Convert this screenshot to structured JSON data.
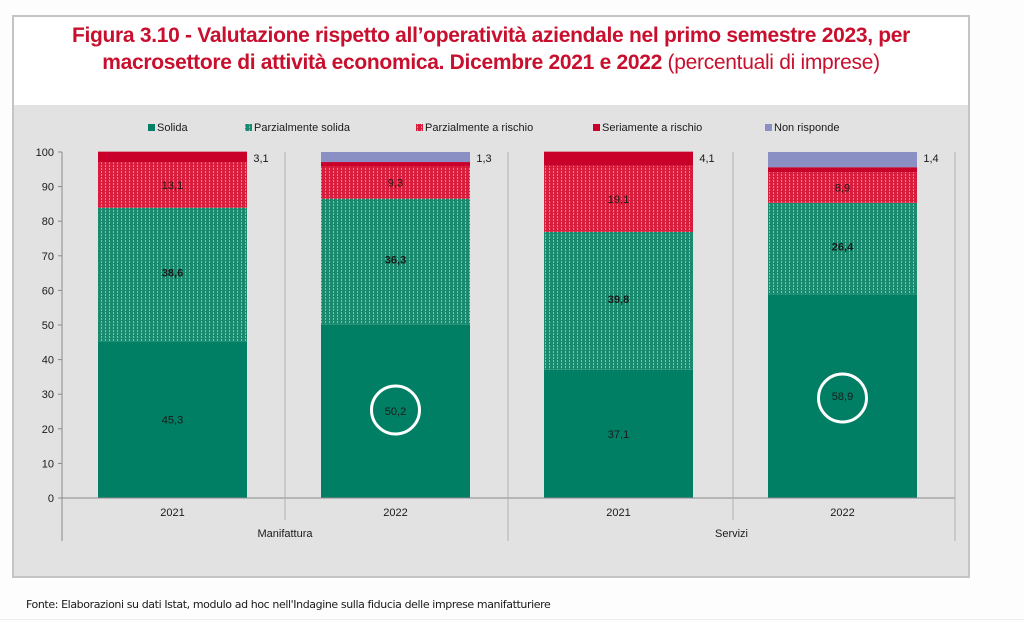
{
  "title": {
    "bold": "Figura 3.10 - Valutazione rispetto all’operatività aziendale nel primo semestre 2023, per macrosettore di attività economica. Dicembre 2021 e 2022",
    "normal": " (percentuali di imprese)"
  },
  "source": "Fonte: Elaborazioni su dati Istat, modulo ad hoc nell'Indagine sulla fiducia delle imprese manifatturiere",
  "colors": {
    "solida": "#007f64",
    "parzialmente_solida": "#1a8a6e",
    "parzialmente_a_rischio": "#d81e3c",
    "seriamente_a_rischio": "#c8002a",
    "non_risponde": "#8a8fc4"
  },
  "chart_data": {
    "type": "bar",
    "stacked": true,
    "title": "Valutazione rispetto all’operatività aziendale nel primo semestre 2023, per macrosettore di attività economica. Dicembre 2021 e 2022 (percentuali di imprese)",
    "xlabel": "",
    "ylabel": "",
    "ylim": [
      0,
      100
    ],
    "yticks": [
      "0",
      "10",
      "20",
      "30",
      "40",
      "50",
      "60",
      "70",
      "80",
      "90",
      "100"
    ],
    "grid": false,
    "legend_position": "top",
    "groups": [
      {
        "name": "Manifattura",
        "categories": [
          "2021",
          "2022"
        ]
      },
      {
        "name": "Servizi",
        "categories": [
          "2021",
          "2022"
        ]
      }
    ],
    "categories": [
      "Manifattura 2021",
      "Manifattura 2022",
      "Servizi 2021",
      "Servizi 2022"
    ],
    "series": [
      {
        "name": "Solida",
        "key": "solida",
        "values": [
          45.3,
          50.2,
          37.1,
          58.9
        ],
        "labels": [
          "45,3",
          "50,2",
          "37,1",
          "58,9"
        ],
        "pattern": "solid"
      },
      {
        "name": "Parzialmente solida",
        "key": "parzialmente_solida",
        "values": [
          38.6,
          36.3,
          39.8,
          26.4
        ],
        "labels": [
          "38,6",
          "36,3",
          "39,8",
          "26,4"
        ],
        "pattern": "dotted"
      },
      {
        "name": "Parzialmente a rischio",
        "key": "parzialmente_a_rischio",
        "values": [
          13.1,
          9.3,
          19.1,
          8.9
        ],
        "labels": [
          "13,1",
          "9,3",
          "19,1",
          "8,9"
        ],
        "pattern": "dotted"
      },
      {
        "name": "Seriamente a rischio",
        "key": "seriamente_a_rischio",
        "values": [
          3.1,
          1.3,
          4.1,
          1.4
        ],
        "labels": [
          "3,1",
          "1,3",
          "4,1",
          "1,4"
        ],
        "pattern": "solid"
      },
      {
        "name": "Non risponde",
        "key": "non_risponde",
        "values": [
          0,
          2.9,
          0,
          4.4
        ],
        "labels": [
          "",
          "",
          "",
          ""
        ],
        "pattern": "solid"
      }
    ],
    "annotations": [
      {
        "type": "circle",
        "category": "Manifattura 2022",
        "series": "Solida",
        "text": "50,2"
      },
      {
        "type": "circle",
        "category": "Servizi 2022",
        "series": "Solida",
        "text": "58,9"
      }
    ]
  }
}
